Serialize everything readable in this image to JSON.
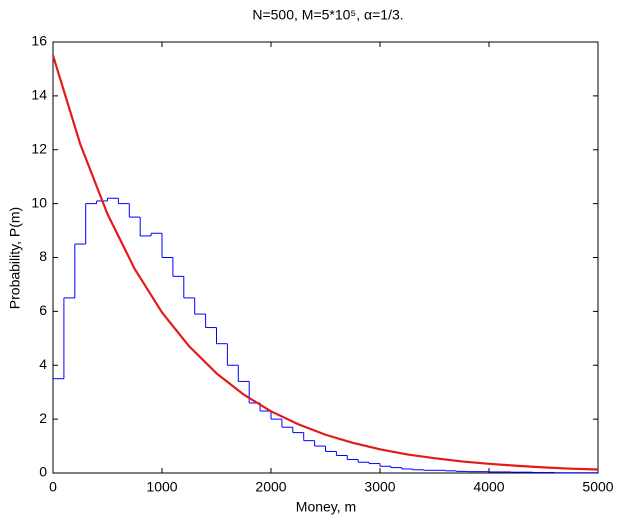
{
  "chart_data": {
    "type": "line",
    "title": "N=500, M=5*10⁵, α=1/3.",
    "x_label": "Money, m",
    "y_label": "Probability, P(m)",
    "xlim": [
      0,
      5000
    ],
    "xticks": [
      0,
      1000,
      2000,
      3000,
      4000,
      5000
    ],
    "ylim": [
      0,
      16
    ],
    "yticks": [
      0,
      2,
      4,
      6,
      8,
      10,
      12,
      14,
      16
    ],
    "series": [
      {
        "type": "histogram",
        "color": "#0000ff",
        "bins": [
          0,
          100,
          200,
          300,
          400,
          500,
          600,
          700,
          800,
          900,
          1000,
          1100,
          1200,
          1300,
          1400,
          1500,
          1600,
          1700,
          1800,
          1900,
          2000,
          2100,
          2200,
          2300,
          2400,
          2500,
          2600,
          2700,
          2800,
          2900,
          3000,
          3100,
          3200,
          3300,
          3400,
          3500,
          3600,
          3700,
          3800,
          3900,
          4000,
          4100,
          4200,
          4300,
          4400,
          4500,
          4600,
          4700,
          4800,
          4900,
          5000
        ],
        "values": [
          3.5,
          6.5,
          8.5,
          10.0,
          10.1,
          10.2,
          10.0,
          9.5,
          8.8,
          8.9,
          8.0,
          7.3,
          6.5,
          5.9,
          5.4,
          4.8,
          4.0,
          3.4,
          2.6,
          2.3,
          2.0,
          1.7,
          1.5,
          1.2,
          1.0,
          0.8,
          0.65,
          0.5,
          0.4,
          0.35,
          0.25,
          0.2,
          0.15,
          0.12,
          0.1,
          0.1,
          0.08,
          0.06,
          0.05,
          0.05,
          0.04,
          0.04,
          0.03,
          0.03,
          0.02,
          0.02,
          0.01,
          0.01,
          0.01,
          0.01
        ]
      },
      {
        "type": "line",
        "color": "#e41a1a",
        "x": [
          0,
          250,
          500,
          750,
          1000,
          1250,
          1500,
          1750,
          2000,
          2250,
          2500,
          2750,
          3000,
          3250,
          3500,
          3750,
          4000,
          4250,
          4500,
          4750,
          5000
        ],
        "values": [
          15.5,
          12.21,
          9.61,
          7.57,
          5.96,
          4.7,
          3.7,
          2.91,
          2.29,
          1.81,
          1.42,
          1.12,
          0.88,
          0.69,
          0.55,
          0.43,
          0.34,
          0.27,
          0.21,
          0.16,
          0.13
        ]
      }
    ]
  }
}
